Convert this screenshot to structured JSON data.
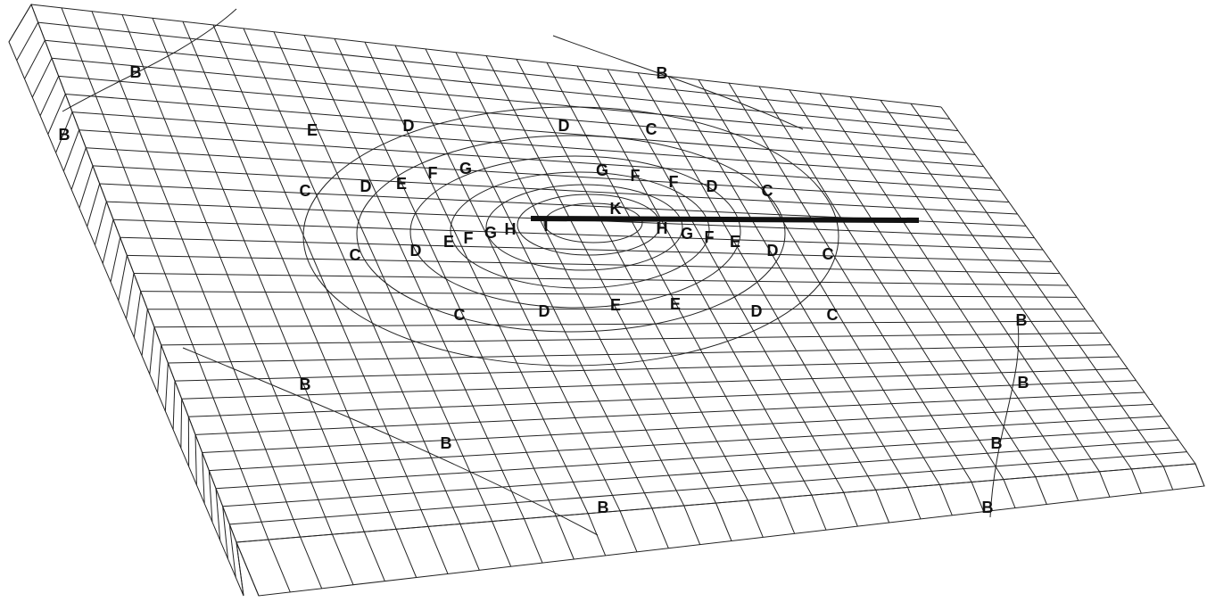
{
  "labels": [
    "B",
    "B",
    "B",
    "E",
    "D",
    "D",
    "C",
    "C",
    "D",
    "E",
    "F",
    "G",
    "G",
    "F",
    "F",
    "D",
    "C",
    "K",
    "I",
    "H",
    "G",
    "F",
    "E",
    "D",
    "C",
    "H",
    "G",
    "F",
    "E",
    "D",
    "C",
    "C",
    "D",
    "E",
    "E",
    "D",
    "C",
    "B",
    "B",
    "B",
    "B",
    "B",
    "B",
    "B"
  ]
}
